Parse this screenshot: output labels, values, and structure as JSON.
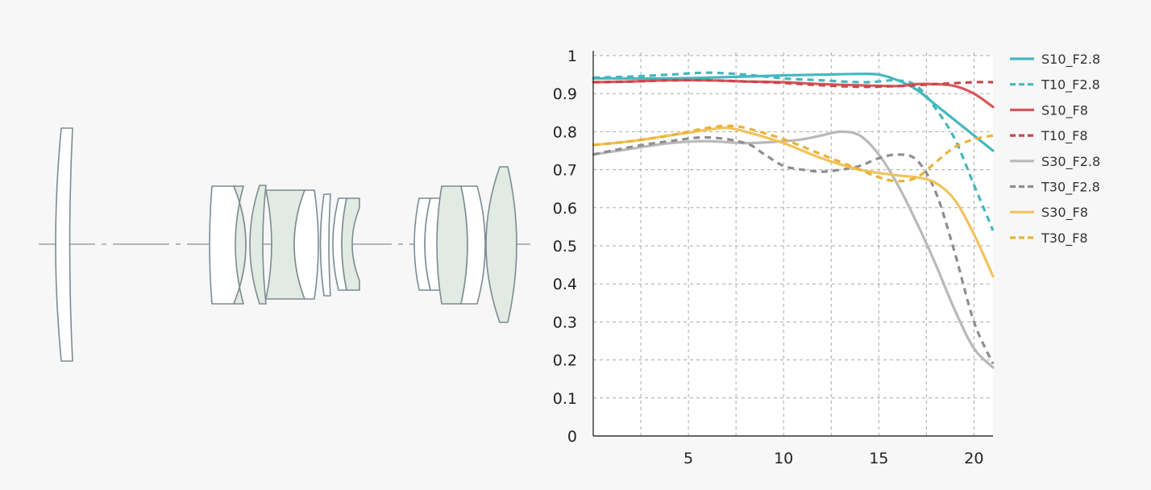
{
  "colors": {
    "background": "#f7f7f7",
    "plot_background": "#ffffff",
    "grid": "#a8a8a8",
    "axis": "#333333",
    "tick_label": "#222222",
    "lens_stroke": "#7d8b91",
    "lens_fill_clear": "#ffffff",
    "lens_fill_green": "#e1eae3",
    "optical_axis": "#9aa1a4"
  },
  "lens_diagram": {
    "description_icon": "lens-cross-section-diagram"
  },
  "chart_data": {
    "type": "line",
    "title": "",
    "xlabel": "",
    "ylabel": "",
    "xlim": [
      0,
      21
    ],
    "ylim": [
      0,
      1
    ],
    "x_ticks": [
      5,
      10,
      15,
      20
    ],
    "x_tick_labels": [
      "5",
      "10",
      "15",
      "20"
    ],
    "y_ticks": [
      0,
      0.1,
      0.2,
      0.3,
      0.4,
      0.5,
      0.6,
      0.7,
      0.8,
      0.9,
      1
    ],
    "y_tick_labels": [
      "0",
      "0.1",
      "0.2",
      "0.3",
      "0.4",
      "0.5",
      "0.6",
      "0.7",
      "0.8",
      "0.9",
      "1"
    ],
    "grid": true,
    "legend_position": "right",
    "series": [
      {
        "name": "S10_F2.8",
        "color": "#45b7bf",
        "dash": false,
        "points": [
          [
            0,
            0.94
          ],
          [
            2,
            0.94
          ],
          [
            4,
            0.94
          ],
          [
            6,
            0.942
          ],
          [
            8,
            0.945
          ],
          [
            10,
            0.948
          ],
          [
            12,
            0.95
          ],
          [
            14,
            0.952
          ],
          [
            15,
            0.95
          ],
          [
            16,
            0.935
          ],
          [
            17,
            0.91
          ],
          [
            18,
            0.87
          ],
          [
            19,
            0.83
          ],
          [
            20,
            0.79
          ],
          [
            21,
            0.75
          ]
        ]
      },
      {
        "name": "T10_F2.8",
        "color": "#45b7bf",
        "dash": true,
        "points": [
          [
            0,
            0.942
          ],
          [
            2,
            0.945
          ],
          [
            4,
            0.95
          ],
          [
            6,
            0.955
          ],
          [
            8,
            0.95
          ],
          [
            10,
            0.94
          ],
          [
            12,
            0.935
          ],
          [
            14,
            0.93
          ],
          [
            15,
            0.932
          ],
          [
            16,
            0.935
          ],
          [
            17,
            0.92
          ],
          [
            18,
            0.86
          ],
          [
            19,
            0.78
          ],
          [
            20,
            0.66
          ],
          [
            21,
            0.54
          ]
        ]
      },
      {
        "name": "S10_F8",
        "color": "#d9575b",
        "dash": false,
        "points": [
          [
            0,
            0.93
          ],
          [
            2,
            0.932
          ],
          [
            4,
            0.935
          ],
          [
            6,
            0.935
          ],
          [
            8,
            0.932
          ],
          [
            10,
            0.93
          ],
          [
            12,
            0.925
          ],
          [
            14,
            0.922
          ],
          [
            16,
            0.92
          ],
          [
            17,
            0.925
          ],
          [
            18,
            0.925
          ],
          [
            19,
            0.92
          ],
          [
            20,
            0.9
          ],
          [
            21,
            0.865
          ]
        ]
      },
      {
        "name": "T10_F8",
        "color": "#c9464b",
        "dash": true,
        "points": [
          [
            0,
            0.93
          ],
          [
            2,
            0.932
          ],
          [
            4,
            0.935
          ],
          [
            6,
            0.935
          ],
          [
            8,
            0.932
          ],
          [
            10,
            0.928
          ],
          [
            12,
            0.922
          ],
          [
            14,
            0.918
          ],
          [
            16,
            0.92
          ],
          [
            18,
            0.925
          ],
          [
            20,
            0.93
          ],
          [
            21,
            0.93
          ]
        ]
      },
      {
        "name": "S30_F2.8",
        "color": "#b9b9b9",
        "dash": false,
        "points": [
          [
            0,
            0.74
          ],
          [
            2,
            0.755
          ],
          [
            4,
            0.77
          ],
          [
            6,
            0.775
          ],
          [
            8,
            0.77
          ],
          [
            10,
            0.775
          ],
          [
            11,
            0.78
          ],
          [
            12,
            0.79
          ],
          [
            13,
            0.8
          ],
          [
            14,
            0.79
          ],
          [
            15,
            0.74
          ],
          [
            16,
            0.66
          ],
          [
            17,
            0.56
          ],
          [
            18,
            0.45
          ],
          [
            19,
            0.33
          ],
          [
            20,
            0.23
          ],
          [
            21,
            0.18
          ]
        ]
      },
      {
        "name": "T30_F2.8",
        "color": "#8e8e8e",
        "dash": true,
        "points": [
          [
            0,
            0.74
          ],
          [
            2,
            0.76
          ],
          [
            4,
            0.775
          ],
          [
            6,
            0.785
          ],
          [
            8,
            0.77
          ],
          [
            9,
            0.74
          ],
          [
            10,
            0.71
          ],
          [
            11,
            0.7
          ],
          [
            12,
            0.695
          ],
          [
            13,
            0.7
          ],
          [
            14,
            0.71
          ],
          [
            15,
            0.73
          ],
          [
            16,
            0.74
          ],
          [
            17,
            0.725
          ],
          [
            18,
            0.64
          ],
          [
            19,
            0.48
          ],
          [
            20,
            0.3
          ],
          [
            21,
            0.19
          ]
        ]
      },
      {
        "name": "S30_F8",
        "color": "#f0c35c",
        "dash": false,
        "points": [
          [
            0,
            0.765
          ],
          [
            2,
            0.775
          ],
          [
            4,
            0.79
          ],
          [
            6,
            0.805
          ],
          [
            7,
            0.81
          ],
          [
            8,
            0.8
          ],
          [
            10,
            0.77
          ],
          [
            12,
            0.73
          ],
          [
            14,
            0.7
          ],
          [
            16,
            0.685
          ],
          [
            17,
            0.68
          ],
          [
            18,
            0.665
          ],
          [
            19,
            0.62
          ],
          [
            20,
            0.53
          ],
          [
            21,
            0.42
          ]
        ]
      },
      {
        "name": "T30_F8",
        "color": "#e9b23a",
        "dash": true,
        "points": [
          [
            0,
            0.765
          ],
          [
            2,
            0.775
          ],
          [
            4,
            0.79
          ],
          [
            6,
            0.81
          ],
          [
            7,
            0.815
          ],
          [
            8,
            0.81
          ],
          [
            10,
            0.78
          ],
          [
            12,
            0.74
          ],
          [
            14,
            0.7
          ],
          [
            15,
            0.68
          ],
          [
            16,
            0.67
          ],
          [
            17,
            0.68
          ],
          [
            18,
            0.72
          ],
          [
            19,
            0.76
          ],
          [
            20,
            0.78
          ],
          [
            21,
            0.79
          ]
        ]
      }
    ]
  }
}
